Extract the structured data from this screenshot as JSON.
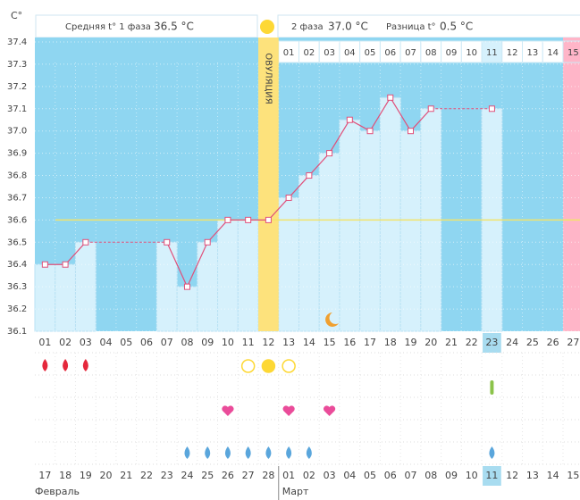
{
  "chart_data": {
    "type": "line",
    "y_label": "С°",
    "phase1_label": "Средняя t° 1 фаза",
    "phase1_value": "36.5 °C",
    "phase2_label": "2 фаза",
    "phase2_value": "37.0 °C",
    "diff_label": "Разница t°",
    "diff_value": "0.5 °C",
    "ovulation_label": "ОВУЛЯЦИЯ",
    "ovulation_day": "12",
    "today": "23",
    "categories": [
      "01",
      "02",
      "03",
      "04",
      "05",
      "06",
      "07",
      "08",
      "09",
      "10",
      "11",
      "12",
      "13",
      "14",
      "15",
      "16",
      "17",
      "18",
      "19",
      "20",
      "21",
      "22",
      "23",
      "24",
      "25",
      "26",
      "27"
    ],
    "values": [
      36.4,
      36.4,
      36.5,
      null,
      null,
      null,
      36.5,
      36.3,
      36.5,
      36.6,
      36.6,
      36.6,
      36.7,
      36.8,
      36.9,
      37.05,
      37.0,
      37.15,
      37.0,
      37.1,
      null,
      null,
      37.1,
      null,
      null,
      null,
      null
    ],
    "coverline": 36.6,
    "phase2_days": [
      "01",
      "02",
      "03",
      "04",
      "05",
      "06",
      "07",
      "08",
      "09",
      "10",
      "11",
      "12",
      "13",
      "14",
      "15"
    ],
    "dates": [
      {
        "label": "17",
        "weekend": true
      },
      {
        "label": "18",
        "weekend": false
      },
      {
        "label": "19",
        "weekend": false
      },
      {
        "label": "20",
        "weekend": false
      },
      {
        "label": "21",
        "weekend": false
      },
      {
        "label": "22",
        "weekend": false
      },
      {
        "label": "23",
        "weekend": true
      },
      {
        "label": "24",
        "weekend": true
      },
      {
        "label": "25",
        "weekend": false
      },
      {
        "label": "26",
        "weekend": false
      },
      {
        "label": "27",
        "weekend": false
      },
      {
        "label": "28",
        "weekend": false
      },
      {
        "label": "01",
        "weekend": false
      },
      {
        "label": "02",
        "weekend": true
      },
      {
        "label": "03",
        "weekend": true
      },
      {
        "label": "04",
        "weekend": false
      },
      {
        "label": "05",
        "weekend": false
      },
      {
        "label": "06",
        "weekend": false
      },
      {
        "label": "07",
        "weekend": false
      },
      {
        "label": "08",
        "weekend": false
      },
      {
        "label": "09",
        "weekend": true
      },
      {
        "label": "10",
        "weekend": true
      },
      {
        "label": "11",
        "weekend": false
      },
      {
        "label": "12",
        "weekend": false
      },
      {
        "label": "13",
        "weekend": false
      },
      {
        "label": "14",
        "weekend": false
      },
      {
        "label": "15",
        "weekend": false
      }
    ],
    "months": [
      "Февраль",
      "Март"
    ],
    "bleeding": [
      true,
      true,
      true,
      false,
      false,
      false,
      false,
      false,
      false,
      false,
      false,
      false,
      false,
      false,
      false,
      false,
      false,
      false,
      false,
      false,
      false,
      false,
      false,
      false,
      false,
      false,
      false
    ],
    "ovulation_test": [
      null,
      null,
      null,
      null,
      null,
      null,
      null,
      null,
      null,
      null,
      "open",
      "filled",
      "open",
      null,
      null,
      null,
      null,
      null,
      null,
      null,
      null,
      null,
      null,
      null,
      null,
      null,
      null
    ],
    "marker": [
      false,
      false,
      false,
      false,
      false,
      false,
      false,
      false,
      false,
      false,
      false,
      false,
      false,
      false,
      false,
      false,
      false,
      false,
      false,
      false,
      false,
      false,
      true,
      false,
      false,
      false,
      false
    ],
    "hearts": [
      false,
      false,
      false,
      false,
      false,
      false,
      false,
      false,
      false,
      true,
      false,
      false,
      true,
      false,
      true,
      false,
      false,
      false,
      false,
      false,
      false,
      false,
      false,
      false,
      false,
      false,
      false
    ],
    "drops": [
      false,
      false,
      false,
      false,
      false,
      false,
      false,
      true,
      true,
      true,
      true,
      true,
      true,
      true,
      false,
      false,
      false,
      false,
      false,
      false,
      false,
      false,
      true,
      false,
      false,
      false,
      false
    ],
    "ylim": [
      36.1,
      37.4
    ],
    "yticks": [
      {
        "value": 36.1,
        "label": "36.1"
      },
      {
        "value": 36.2,
        "label": "36.2"
      },
      {
        "value": 36.3,
        "label": "36.3"
      },
      {
        "value": 36.4,
        "label": "36.4"
      },
      {
        "value": 36.5,
        "label": "36.5"
      },
      {
        "value": 36.6,
        "label": "36.6"
      },
      {
        "value": 36.7,
        "label": "36.7"
      },
      {
        "value": 36.8,
        "label": "36.8"
      },
      {
        "value": 36.9,
        "label": "36.9"
      },
      {
        "value": 37,
        "label": "37.0"
      },
      {
        "value": 37.1,
        "label": "37.1"
      },
      {
        "value": 37.2,
        "label": "37.2"
      },
      {
        "value": 37.3,
        "label": "37.3"
      },
      {
        "value": 37.4,
        "label": "37.4"
      }
    ],
    "grid": true
  }
}
